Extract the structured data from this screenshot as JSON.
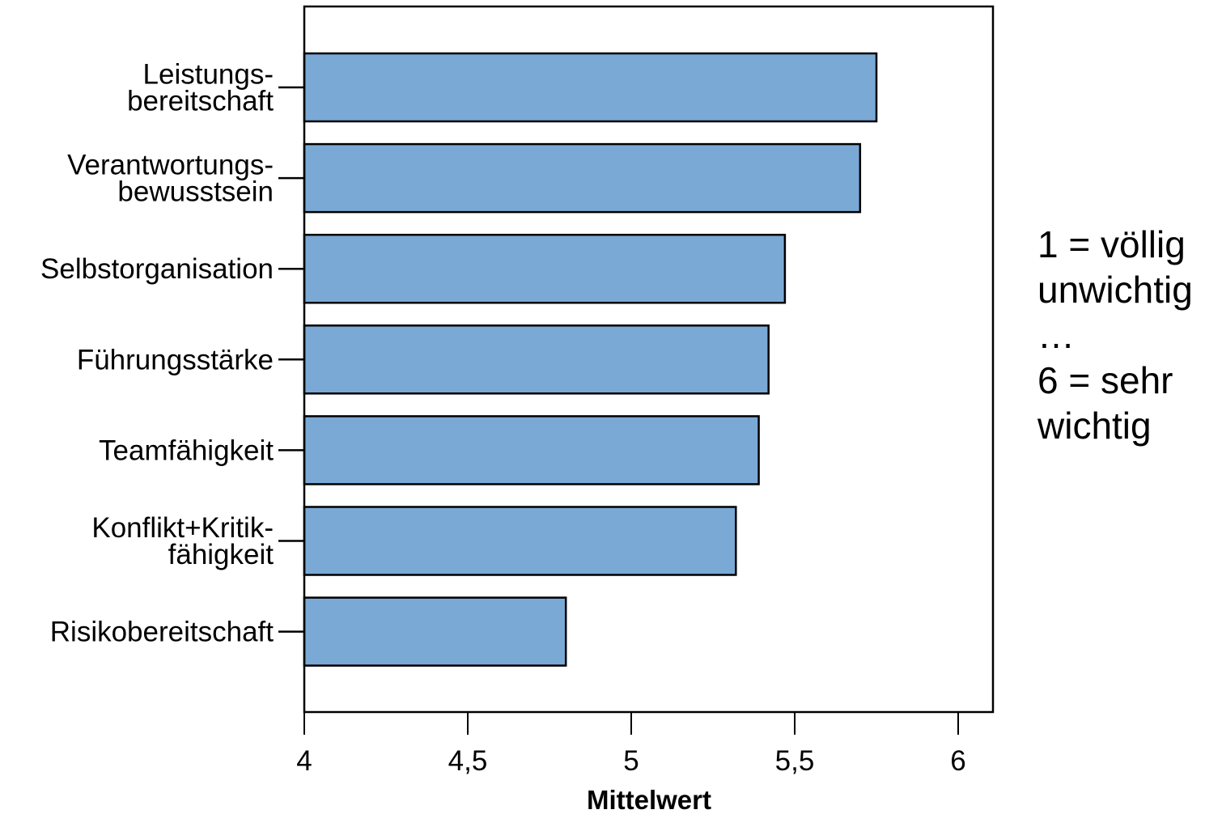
{
  "chart_data": {
    "type": "bar",
    "orientation": "horizontal",
    "categories": [
      [
        "Leistungs-",
        "bereitschaft"
      ],
      [
        "Verantwortungs-",
        "bewusstsein"
      ],
      [
        "Selbstorganisation"
      ],
      [
        "Führungsstärke"
      ],
      [
        "Teamfähigkeit"
      ],
      [
        "Konflikt+Kritik-",
        "fähigkeit"
      ],
      [
        "Risikobereitschaft"
      ]
    ],
    "values": [
      5.75,
      5.7,
      5.47,
      5.42,
      5.39,
      5.32,
      4.8
    ],
    "xlabel": "Mittelwert",
    "xlim": [
      4,
      6.1
    ],
    "xticks": [
      4,
      4.5,
      5,
      5.5,
      6
    ],
    "xtick_labels": [
      "4",
      "4,5",
      "5",
      "5,5",
      "6"
    ],
    "bar_color": "#7aa9d6",
    "bar_edge_color": "#000000",
    "grid": false,
    "legend": "none"
  },
  "note": {
    "lines": [
      "1 = völlig",
      "unwichtig",
      "…",
      "6 = sehr",
      "wichtig"
    ]
  }
}
